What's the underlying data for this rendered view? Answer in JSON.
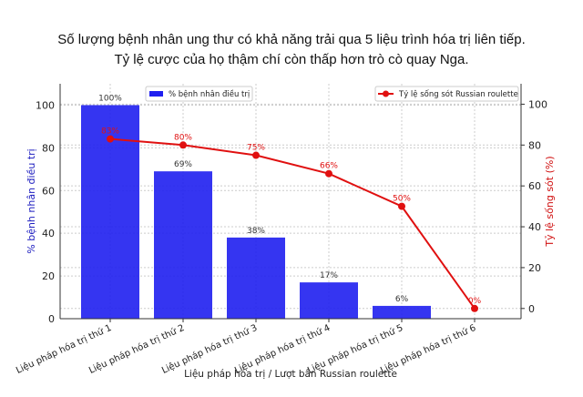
{
  "title_line1": "Số lượng bệnh nhân ung thư có khả năng trải qua 5 liệu trình hóa trị liên tiếp.",
  "title_line2": "Tỷ lệ cược của họ thậm chí còn thấp hơn trò cò quay Nga.",
  "chart_data": {
    "type": "bar+line",
    "xlabel": "Liệu pháp hóa trị / Lượt bắn Russian roulette",
    "ylabel_left": "% bệnh nhân điều trị",
    "ylabel_right": "Tỷ lệ sống sót (%)",
    "categories": [
      "Liệu pháp hóa trị thứ 1",
      "Liệu pháp hóa trị thứ 2",
      "Liệu pháp hóa trị thứ 3",
      "Liệu pháp hóa trị thứ 4",
      "Liệu pháp hóa trị thứ 5",
      "Liệu pháp hóa trị thứ 6"
    ],
    "series": [
      {
        "name": "% bệnh nhân điều trị",
        "type": "bar",
        "axis": "left",
        "color": "#1f1ff0",
        "values": [
          100,
          69,
          38,
          17,
          6,
          null
        ],
        "labels": [
          "100%",
          "69%",
          "38%",
          "17%",
          "6%",
          ""
        ]
      },
      {
        "name": "Tỷ lệ sống sót Russian roulette",
        "type": "line",
        "axis": "right",
        "color": "#e01010",
        "values": [
          83,
          80,
          75,
          66,
          50,
          0
        ],
        "labels": [
          "83%",
          "80%",
          "75%",
          "66%",
          "50%",
          "0%"
        ]
      }
    ],
    "ylim_left": [
      0,
      110
    ],
    "ylim_right": [
      -5,
      110
    ],
    "yticks_left": [
      0,
      20,
      40,
      60,
      80,
      100
    ],
    "yticks_right": [
      0,
      20,
      40,
      60,
      80,
      100
    ],
    "grid": true,
    "legend_left": "top-left",
    "legend_right": "top-right"
  }
}
